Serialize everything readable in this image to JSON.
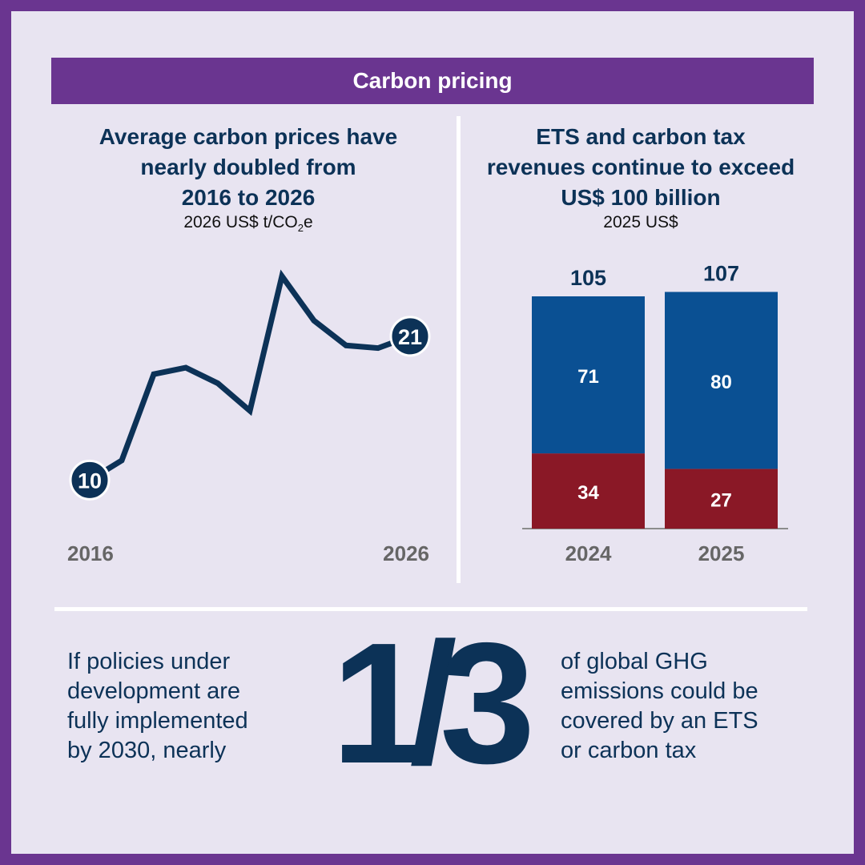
{
  "banner": {
    "title": "Carbon pricing"
  },
  "left_chart": {
    "title_lines": [
      "Average carbon prices have",
      "nearly doubled from",
      "2016 to 2026"
    ],
    "unit_prefix": "2026 US$ t/CO",
    "unit_sub": "2",
    "unit_suffix": "e",
    "start_year": "2016",
    "end_year": "2026",
    "start_value": "10",
    "end_value": "21"
  },
  "right_chart": {
    "title_lines": [
      "ETS and carbon tax",
      "revenues continue to exceed",
      "US$ 100 billion"
    ],
    "unit": "2025 US$"
  },
  "bottom": {
    "left_lines": [
      "If policies under",
      "development are",
      "fully implemented",
      "by 2030, nearly"
    ],
    "big_stat": "1/3",
    "right_lines": [
      "of global GHG",
      "emissions could be",
      "covered by an ETS",
      "or carbon tax"
    ]
  },
  "colors": {
    "purple": "#6a3590",
    "navy": "#0c3257",
    "blue": "#0a5093",
    "red": "#8a1826",
    "background": "#e8e4f1"
  },
  "chart_data": [
    {
      "type": "line",
      "title": "Average carbon prices have nearly doubled from 2016 to 2026",
      "ylabel": "2026 US$ t/CO2e",
      "x": [
        2016,
        2017,
        2018,
        2019,
        2020,
        2021,
        2022,
        2023,
        2024,
        2025,
        2026
      ],
      "values": [
        10,
        11.5,
        18.1,
        18.6,
        17.4,
        15.3,
        25.6,
        22.2,
        20.3,
        20.1,
        21
      ],
      "labeled_points": [
        {
          "x": 2016,
          "label": "10"
        },
        {
          "x": 2026,
          "label": "21"
        }
      ],
      "ylim": [
        8,
        27
      ],
      "grid": false
    },
    {
      "type": "bar",
      "stacked": true,
      "title": "ETS and carbon tax revenues continue to exceed US$ 100 billion",
      "ylabel": "2025 US$",
      "categories": [
        "2024",
        "2025"
      ],
      "totals": [
        105,
        107
      ],
      "series": [
        {
          "values": [
            34,
            27
          ],
          "color": "#8a1826"
        },
        {
          "values": [
            71,
            80
          ],
          "color": "#0a5093"
        }
      ],
      "grid": false
    }
  ]
}
